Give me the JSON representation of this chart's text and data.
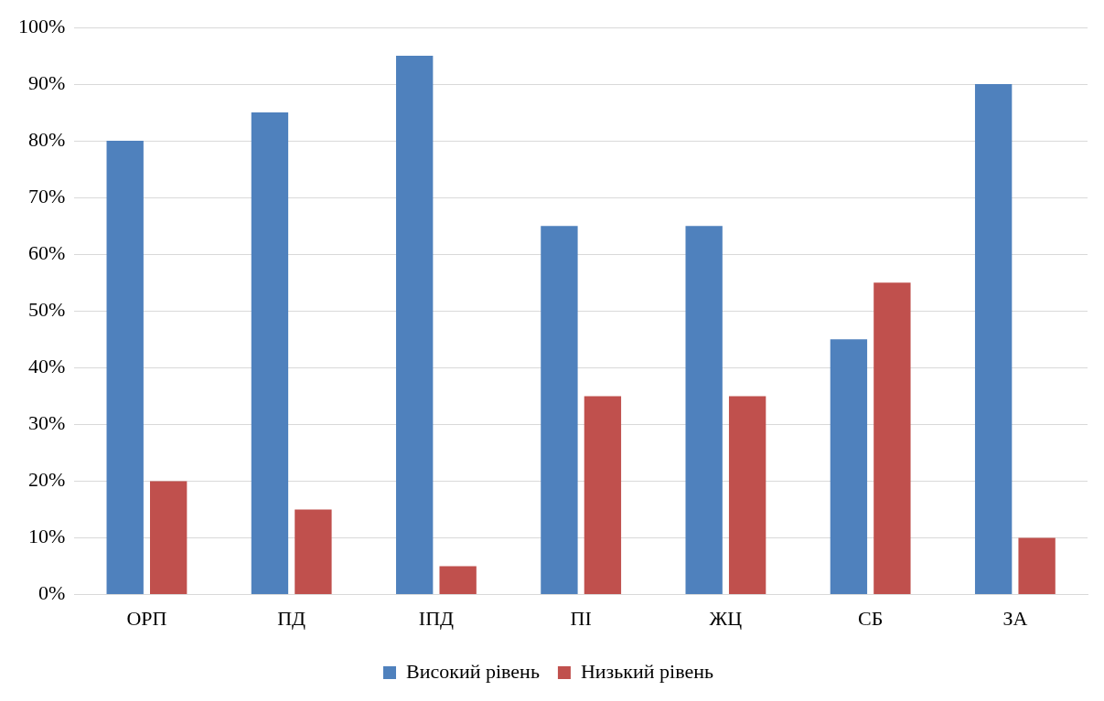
{
  "chart_data": {
    "type": "bar",
    "categories": [
      "ОРП",
      "ПД",
      "ІПД",
      "ПІ",
      "ЖЦ",
      "СБ",
      "ЗА"
    ],
    "series": [
      {
        "name": "Високий рівень",
        "color": "#4f81bd",
        "values": [
          80,
          85,
          95,
          65,
          65,
          45,
          90
        ]
      },
      {
        "name": "Низький рівень",
        "color": "#c0504d",
        "values": [
          20,
          15,
          5,
          35,
          35,
          55,
          10
        ]
      }
    ],
    "ylim": [
      0,
      100
    ],
    "yticks": [
      {
        "value": 0,
        "label": "0%"
      },
      {
        "value": 10,
        "label": "10%"
      },
      {
        "value": 20,
        "label": "20%"
      },
      {
        "value": 30,
        "label": "30%"
      },
      {
        "value": 40,
        "label": "40%"
      },
      {
        "value": 50,
        "label": "50%"
      },
      {
        "value": 60,
        "label": "60%"
      },
      {
        "value": 70,
        "label": "70%"
      },
      {
        "value": 80,
        "label": "80%"
      },
      {
        "value": 90,
        "label": "90%"
      },
      {
        "value": 100,
        "label": "100%"
      }
    ],
    "grid": "y",
    "legend": "bottom"
  }
}
